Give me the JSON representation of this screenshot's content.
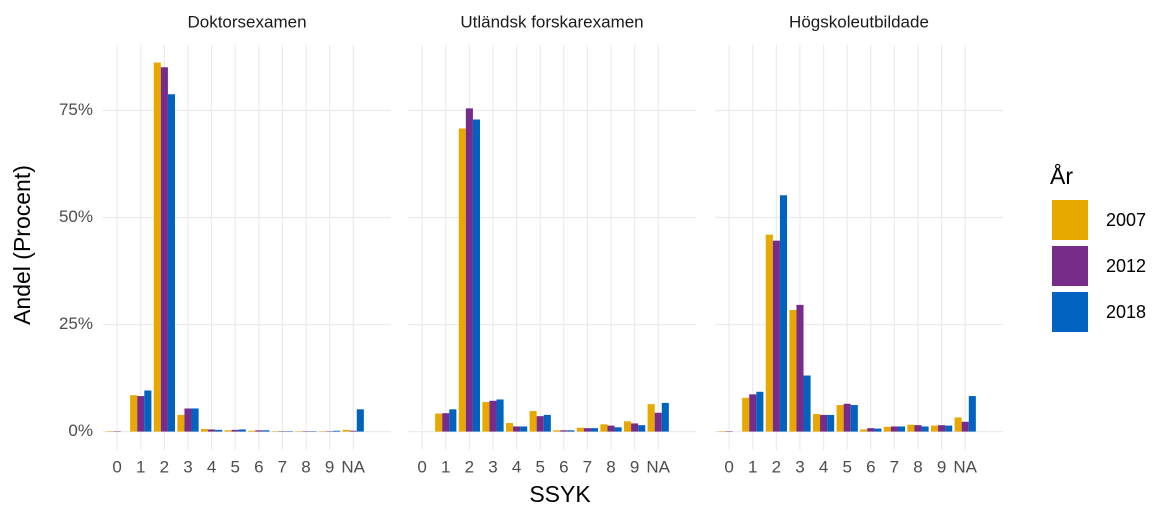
{
  "chart_data": [
    {
      "type": "bar",
      "title": "Doktorsexamen",
      "categories": [
        "0",
        "1",
        "2",
        "3",
        "4",
        "5",
        "6",
        "7",
        "8",
        "9",
        "NA"
      ],
      "series": [
        {
          "name": "2007",
          "color": "#e8a800",
          "values": [
            0.1,
            8.5,
            86.2,
            3.9,
            0.6,
            0.3,
            0.2,
            0.1,
            0.1,
            0.1,
            0.4
          ]
        },
        {
          "name": "2012",
          "color": "#772b8a",
          "values": [
            0.1,
            8.3,
            85.1,
            5.4,
            0.5,
            0.4,
            0.3,
            0.1,
            0.1,
            0.1,
            0.2
          ]
        },
        {
          "name": "2018",
          "color": "#0063c0",
          "values": [
            0,
            9.6,
            78.8,
            5.4,
            0.4,
            0.5,
            0.3,
            0.1,
            0.1,
            0.2,
            5.2
          ]
        }
      ],
      "ylim": [
        -4.3,
        90.3
      ],
      "yticks": [
        {
          "value": 0,
          "label": "0%"
        },
        {
          "value": 25,
          "label": "25%"
        },
        {
          "value": 50,
          "label": "50%"
        },
        {
          "value": 75,
          "label": "75%"
        }
      ],
      "grid": true
    },
    {
      "type": "bar",
      "title": "Utländsk forskarexamen",
      "categories": [
        "0",
        "1",
        "2",
        "3",
        "4",
        "5",
        "6",
        "7",
        "8",
        "9",
        "NA"
      ],
      "series": [
        {
          "name": "2007",
          "color": "#e8a800",
          "values": [
            0,
            4.2,
            70.8,
            6.9,
            2.0,
            4.8,
            0.3,
            0.9,
            1.7,
            2.4,
            6.4
          ]
        },
        {
          "name": "2012",
          "color": "#772b8a",
          "values": [
            0,
            4.3,
            75.5,
            7.2,
            1.2,
            3.6,
            0.3,
            0.8,
            1.4,
            1.9,
            4.4
          ]
        },
        {
          "name": "2018",
          "color": "#0063c0",
          "values": [
            0,
            5.2,
            72.9,
            7.5,
            1.2,
            3.9,
            0.3,
            0.8,
            1.0,
            1.5,
            6.7
          ]
        }
      ],
      "ylim": [
        -4.3,
        90.3
      ],
      "grid": true
    },
    {
      "type": "bar",
      "title": "Högskoleutbildade",
      "categories": [
        "0",
        "1",
        "2",
        "3",
        "4",
        "5",
        "6",
        "7",
        "8",
        "9",
        "NA"
      ],
      "series": [
        {
          "name": "2007",
          "color": "#e8a800",
          "values": [
            0.1,
            7.9,
            46.0,
            28.4,
            4.1,
            6.2,
            0.5,
            1.1,
            1.6,
            1.4,
            3.3
          ]
        },
        {
          "name": "2012",
          "color": "#772b8a",
          "values": [
            0.1,
            8.7,
            44.6,
            29.6,
            3.9,
            6.5,
            0.8,
            1.2,
            1.5,
            1.5,
            2.3
          ]
        },
        {
          "name": "2018",
          "color": "#0063c0",
          "values": [
            0,
            9.3,
            55.2,
            13.1,
            3.9,
            6.2,
            0.7,
            1.2,
            1.2,
            1.4,
            8.3
          ]
        }
      ],
      "ylim": [
        -4.3,
        90.3
      ],
      "grid": true
    }
  ],
  "xlabel": "SSYK",
  "ylabel": "Andel (Procent)",
  "legend_title": "År"
}
